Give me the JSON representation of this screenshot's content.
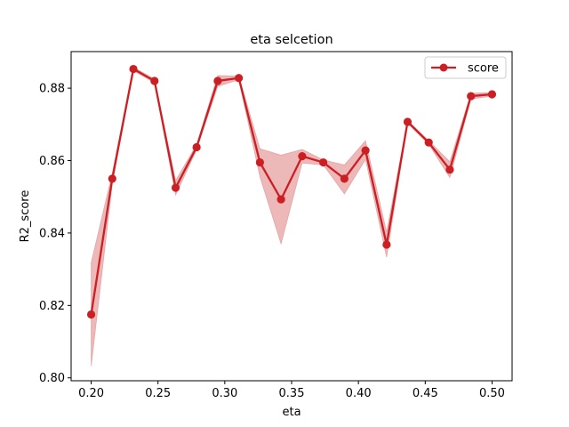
{
  "chart_data": {
    "type": "line",
    "title": "eta selcetion",
    "xlabel": "eta",
    "ylabel": "R2_score",
    "xlim": [
      0.185,
      0.515
    ],
    "ylim": [
      0.7992,
      0.8901
    ],
    "xticks": [
      0.2,
      0.25,
      0.3,
      0.35,
      0.4,
      0.45,
      0.5
    ],
    "xtick_labels": [
      "0.20",
      "0.25",
      "0.30",
      "0.35",
      "0.40",
      "0.45",
      "0.50"
    ],
    "yticks": [
      0.8,
      0.82,
      0.84,
      0.86,
      0.88
    ],
    "ytick_labels": [
      "0.80",
      "0.82",
      "0.84",
      "0.86",
      "0.88"
    ],
    "grid": false,
    "legend_position": "top-right",
    "series": [
      {
        "name": "score",
        "color": "#cc1f24",
        "band_color": "#e08888",
        "x": [
          0.2,
          0.2158,
          0.2316,
          0.2474,
          0.2632,
          0.2789,
          0.2947,
          0.3105,
          0.3263,
          0.3421,
          0.3579,
          0.3737,
          0.3895,
          0.4053,
          0.4211,
          0.4368,
          0.4526,
          0.4684,
          0.4842,
          0.5
        ],
        "y": [
          0.8175,
          0.855,
          0.8853,
          0.882,
          0.8525,
          0.8637,
          0.882,
          0.8828,
          0.8595,
          0.8493,
          0.8612,
          0.8595,
          0.855,
          0.8628,
          0.8368,
          0.8707,
          0.865,
          0.8575,
          0.8778,
          0.8783
        ],
        "lower": [
          0.8032,
          0.8535,
          0.8848,
          0.8815,
          0.8505,
          0.863,
          0.8805,
          0.8823,
          0.8555,
          0.837,
          0.8593,
          0.8588,
          0.8508,
          0.8603,
          0.8333,
          0.8703,
          0.8645,
          0.8553,
          0.877,
          0.8778
        ],
        "upper": [
          0.8318,
          0.8565,
          0.8858,
          0.8825,
          0.8545,
          0.8644,
          0.8835,
          0.8833,
          0.8633,
          0.8615,
          0.8631,
          0.8602,
          0.8588,
          0.8655,
          0.8403,
          0.8711,
          0.8655,
          0.8597,
          0.8786,
          0.8788
        ]
      }
    ]
  }
}
